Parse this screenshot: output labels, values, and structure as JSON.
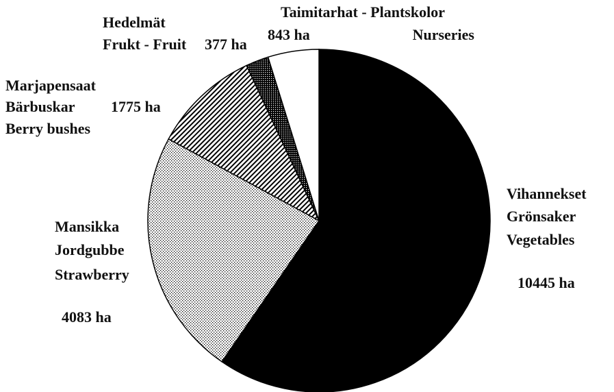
{
  "chart_data": {
    "type": "pie",
    "categories": [
      [
        "Vihannekset",
        "Grönsaker",
        "Vegetables"
      ],
      [
        "Mansikka",
        "Jordgubbe",
        "Strawberry"
      ],
      [
        "Marjapensaat",
        "Bärbuskar",
        "Berry bushes"
      ],
      [
        "Hedelmät",
        "Frukt - Fruit"
      ],
      [
        "Taimitarhat - Plantskolor",
        "Nurseries"
      ]
    ],
    "values": [
      10445,
      4083,
      1775,
      377,
      843
    ],
    "value_labels": [
      "10445 ha",
      "4083 ha",
      "1775 ha",
      "377 ha",
      "843 ha"
    ],
    "colors": [
      "#000000",
      "#000000",
      "#000000",
      "#000000",
      "#ffffff"
    ],
    "patterns": [
      "solid",
      "dots",
      "hatch",
      "dense-dots",
      "solid"
    ]
  }
}
